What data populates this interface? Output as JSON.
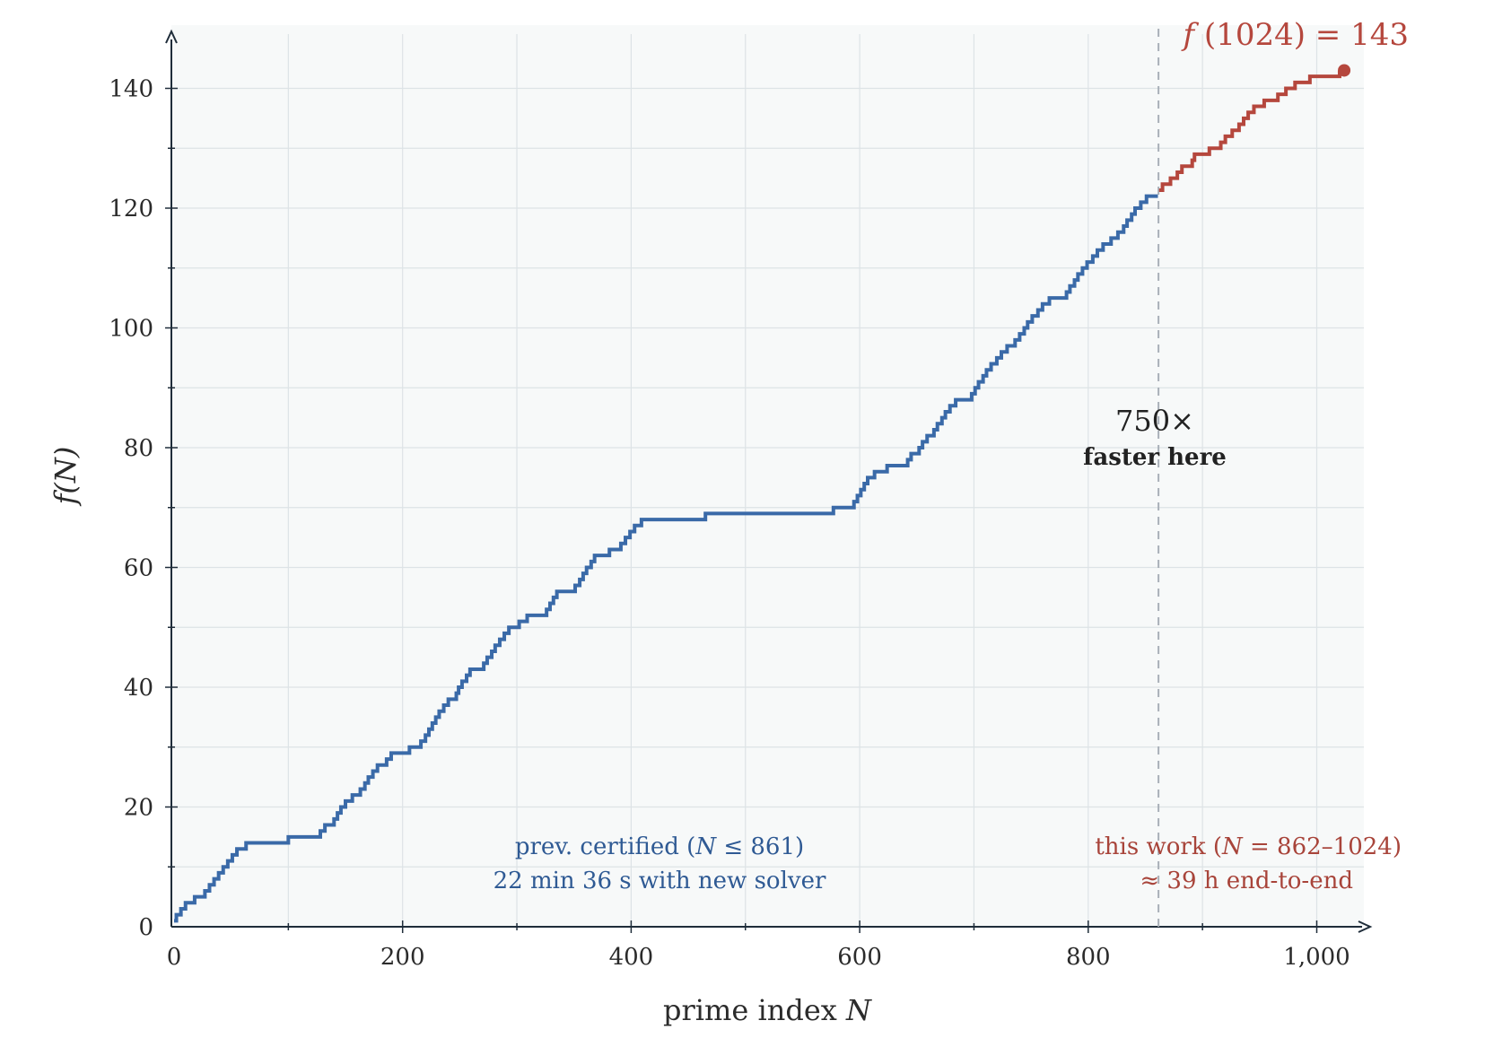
{
  "chart_data": {
    "type": "line",
    "title": "",
    "xlabel_text": "prime index ",
    "xlabel_var": "N",
    "ylabel_fn": "f",
    "ylabel_arg": "(N)",
    "xlim": [
      0,
      1050
    ],
    "ylim": [
      0,
      150
    ],
    "x_ticks": [
      0,
      200,
      400,
      600,
      800,
      1000
    ],
    "x_tick_labels": [
      "0",
      "200",
      "400",
      "600",
      "800",
      "1,000"
    ],
    "y_ticks": [
      0,
      20,
      40,
      60,
      80,
      100,
      120,
      140
    ],
    "y_tick_labels": [
      "0",
      "20",
      "40",
      "60",
      "80",
      "100",
      "120",
      "140"
    ],
    "grid": true,
    "colors": {
      "previous": "#3a6aa8",
      "this_work": "#b5473d",
      "grid": "#dde3e6",
      "background": "#f7f9f9",
      "divider": "#a9b0b8"
    },
    "series": [
      {
        "key": "previous",
        "step": true,
        "points": [
          [
            0,
            1
          ],
          [
            2,
            2
          ],
          [
            6,
            3
          ],
          [
            10,
            4
          ],
          [
            18,
            5
          ],
          [
            27,
            6
          ],
          [
            31,
            7
          ],
          [
            35,
            8
          ],
          [
            39,
            9
          ],
          [
            43,
            10
          ],
          [
            47,
            11
          ],
          [
            51,
            12
          ],
          [
            55,
            13
          ],
          [
            63,
            14
          ],
          [
            100,
            15
          ],
          [
            128,
            16
          ],
          [
            132,
            17
          ],
          [
            140,
            18
          ],
          [
            143,
            19
          ],
          [
            146,
            20
          ],
          [
            150,
            21
          ],
          [
            156,
            22
          ],
          [
            163,
            23
          ],
          [
            167,
            24
          ],
          [
            170,
            25
          ],
          [
            174,
            26
          ],
          [
            178,
            27
          ],
          [
            186,
            28
          ],
          [
            190,
            29
          ],
          [
            206,
            30
          ],
          [
            216,
            31
          ],
          [
            220,
            32
          ],
          [
            223,
            33
          ],
          [
            226,
            34
          ],
          [
            229,
            35
          ],
          [
            232,
            36
          ],
          [
            236,
            37
          ],
          [
            240,
            38
          ],
          [
            247,
            39
          ],
          [
            249,
            40
          ],
          [
            252,
            41
          ],
          [
            256,
            42
          ],
          [
            259,
            43
          ],
          [
            271,
            44
          ],
          [
            274,
            45
          ],
          [
            278,
            46
          ],
          [
            281,
            47
          ],
          [
            285,
            48
          ],
          [
            289,
            49
          ],
          [
            293,
            50
          ],
          [
            302,
            51
          ],
          [
            309,
            52
          ],
          [
            326,
            53
          ],
          [
            329,
            54
          ],
          [
            332,
            55
          ],
          [
            335,
            56
          ],
          [
            351,
            57
          ],
          [
            355,
            58
          ],
          [
            358,
            59
          ],
          [
            361,
            60
          ],
          [
            365,
            61
          ],
          [
            368,
            62
          ],
          [
            381,
            63
          ],
          [
            391,
            64
          ],
          [
            395,
            65
          ],
          [
            399,
            66
          ],
          [
            403,
            67
          ],
          [
            409,
            68
          ],
          [
            465,
            69
          ],
          [
            577,
            70
          ],
          [
            595,
            71
          ],
          [
            598,
            72
          ],
          [
            601,
            73
          ],
          [
            604,
            74
          ],
          [
            607,
            75
          ],
          [
            613,
            76
          ],
          [
            624,
            77
          ],
          [
            642,
            78
          ],
          [
            645,
            79
          ],
          [
            652,
            80
          ],
          [
            655,
            81
          ],
          [
            659,
            82
          ],
          [
            665,
            83
          ],
          [
            668,
            84
          ],
          [
            672,
            85
          ],
          [
            675,
            86
          ],
          [
            679,
            87
          ],
          [
            684,
            88
          ],
          [
            698,
            89
          ],
          [
            701,
            90
          ],
          [
            704,
            91
          ],
          [
            708,
            92
          ],
          [
            711,
            93
          ],
          [
            715,
            94
          ],
          [
            720,
            95
          ],
          [
            724,
            96
          ],
          [
            729,
            97
          ],
          [
            736,
            98
          ],
          [
            740,
            99
          ],
          [
            744,
            100
          ],
          [
            747,
            101
          ],
          [
            751,
            102
          ],
          [
            756,
            103
          ],
          [
            760,
            104
          ],
          [
            766,
            105
          ],
          [
            781,
            106
          ],
          [
            784,
            107
          ],
          [
            788,
            108
          ],
          [
            791,
            109
          ],
          [
            795,
            110
          ],
          [
            799,
            111
          ],
          [
            804,
            112
          ],
          [
            808,
            113
          ],
          [
            813,
            114
          ],
          [
            820,
            115
          ],
          [
            826,
            116
          ],
          [
            831,
            117
          ],
          [
            834,
            118
          ],
          [
            838,
            119
          ],
          [
            841,
            120
          ],
          [
            846,
            121
          ],
          [
            851,
            122
          ],
          [
            861,
            122
          ]
        ]
      },
      {
        "key": "this_work",
        "step": true,
        "points": [
          [
            862,
            123
          ],
          [
            865,
            124
          ],
          [
            872,
            125
          ],
          [
            878,
            126
          ],
          [
            882,
            127
          ],
          [
            891,
            128
          ],
          [
            893,
            129
          ],
          [
            906,
            130
          ],
          [
            916,
            131
          ],
          [
            920,
            132
          ],
          [
            926,
            133
          ],
          [
            932,
            134
          ],
          [
            936,
            135
          ],
          [
            940,
            136
          ],
          [
            945,
            137
          ],
          [
            954,
            138
          ],
          [
            966,
            139
          ],
          [
            973,
            140
          ],
          [
            981,
            141
          ],
          [
            994,
            142
          ],
          [
            1020,
            143
          ]
        ]
      }
    ],
    "endpoint": {
      "x": 1024,
      "y": 143
    },
    "divider_x": 861.5,
    "annotations": {
      "endpoint_fn": "f",
      "endpoint_rest": " (1024) = 143",
      "prev_line1_a": "prev. certified (",
      "prev_line1_var": "N",
      "prev_line1_b": " ≤ 861)",
      "prev_line2": "22 min 36 s with new solver",
      "this_line1_a": "this work (",
      "this_line1_var": "N",
      "this_line1_b": " = 862–1024)",
      "this_line2": "≈ 39 h end-to-end",
      "speedup": "750×",
      "speedup_sub": "faster here"
    }
  }
}
